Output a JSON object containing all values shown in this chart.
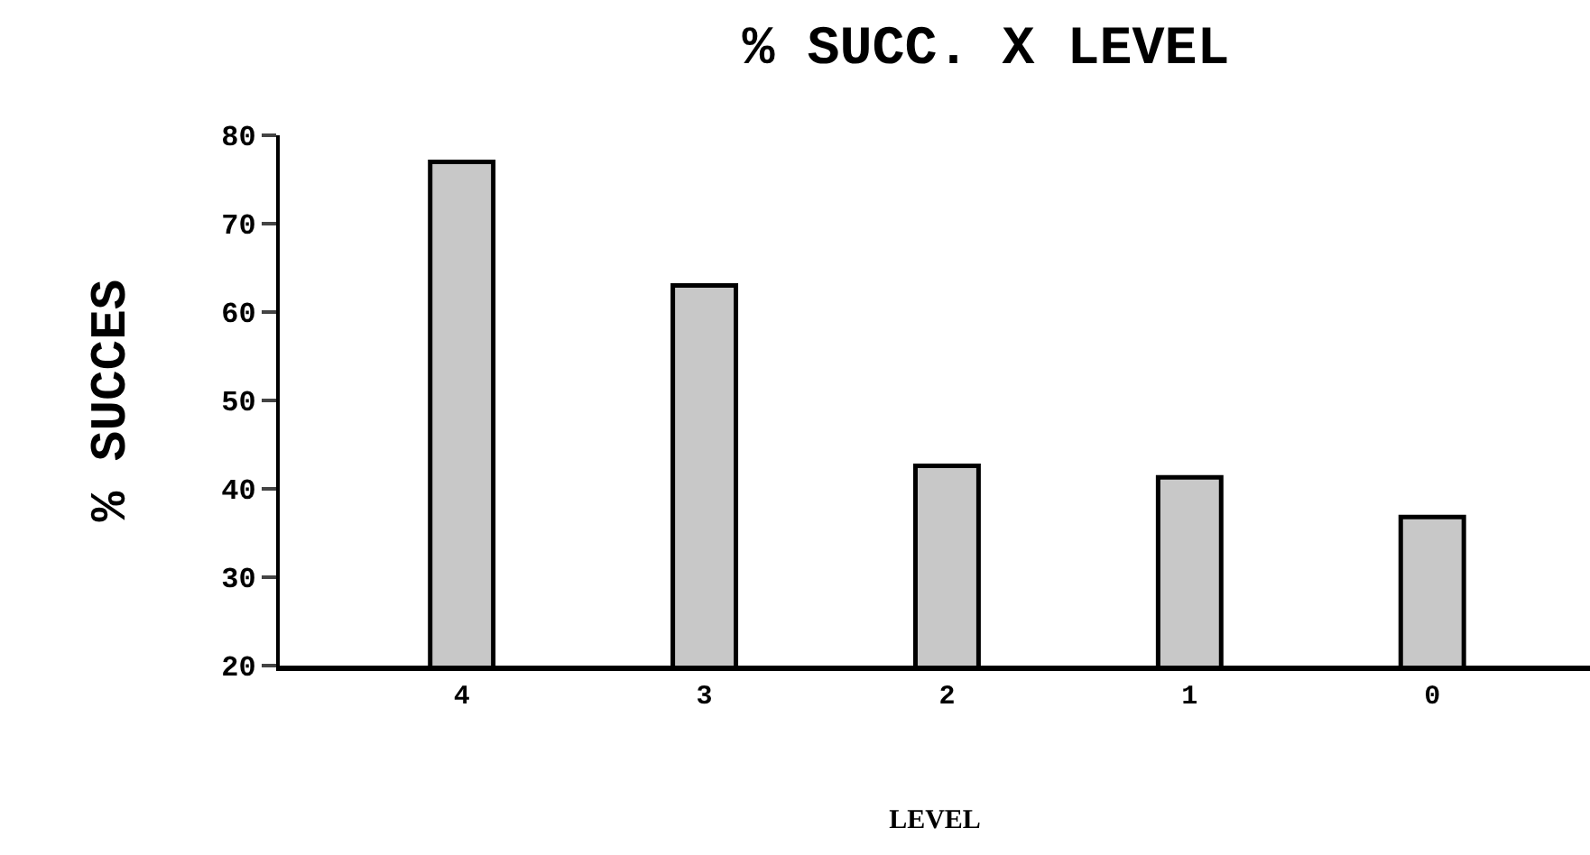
{
  "chart_data": {
    "type": "bar",
    "title": "% SUCC. X LEVEL",
    "xlabel": "LEVEL",
    "ylabel": "% SUCCES",
    "categories": [
      "4",
      "3",
      "2",
      "1",
      "0"
    ],
    "values": [
      77,
      63,
      42.6,
      41.3,
      36.8
    ],
    "color": "#c8c8c8",
    "ylim": [
      20,
      80
    ],
    "yticks": [
      20,
      30,
      40,
      50,
      60,
      70,
      80
    ]
  }
}
